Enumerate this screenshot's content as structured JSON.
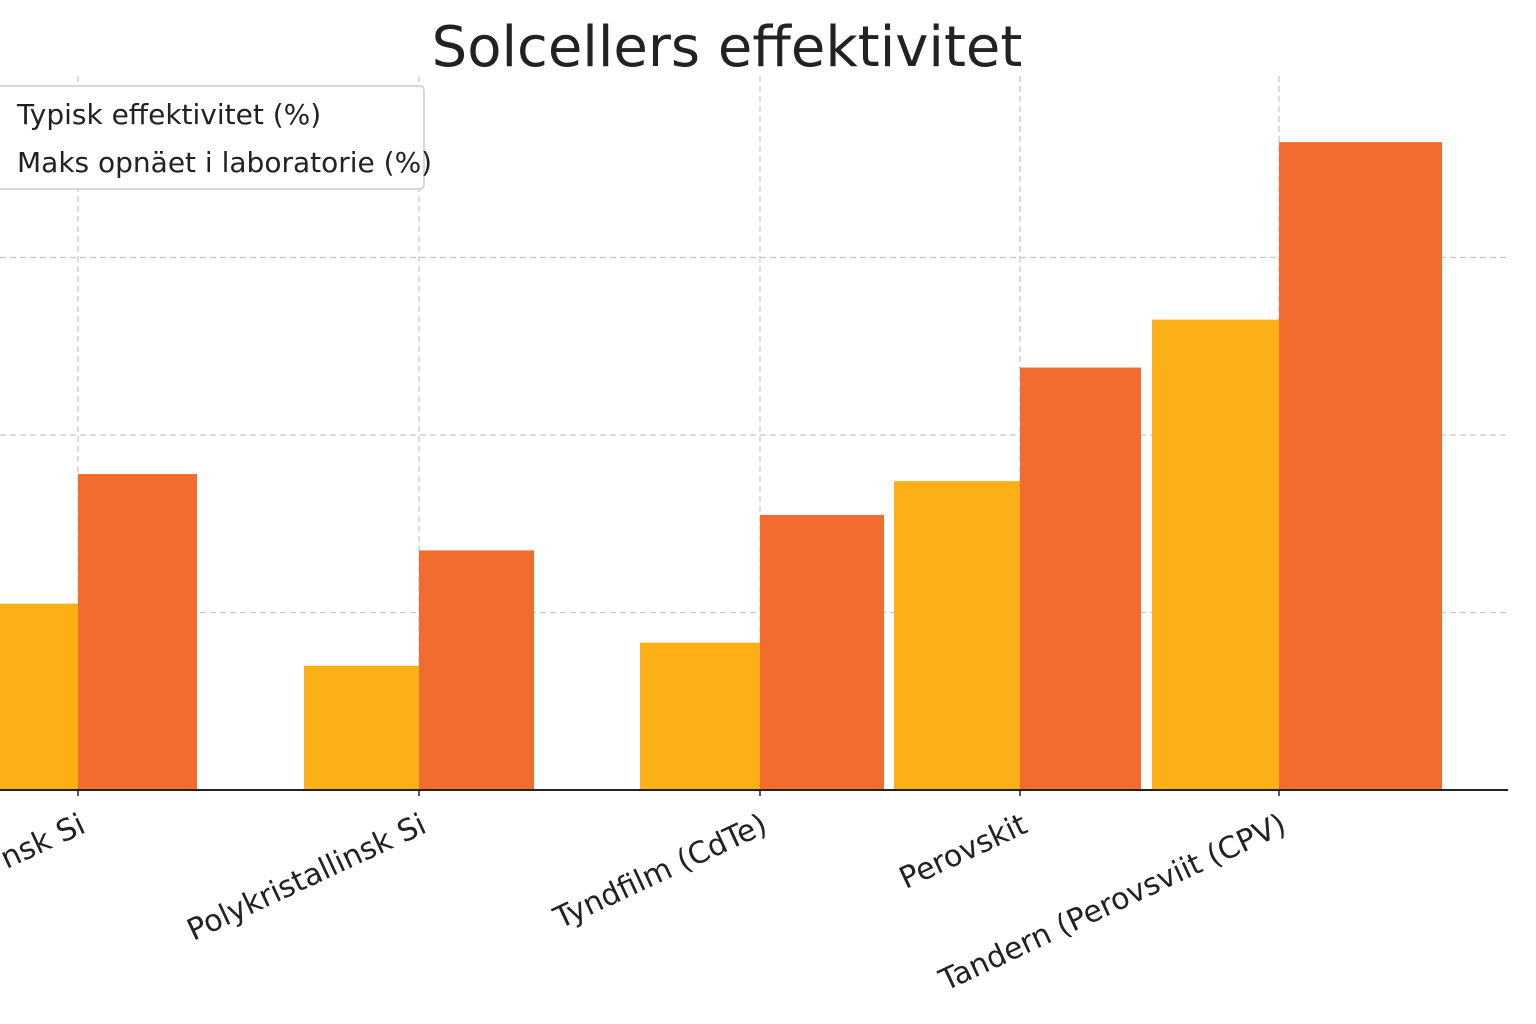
{
  "chart_data": {
    "type": "bar",
    "title": "Solcellers effektivitet",
    "xlabel": "",
    "ylabel": "",
    "ylim": [
      0,
      36
    ],
    "grid": true,
    "legend_position": "top-left",
    "categories": [
      "Monokrystallinsk Si",
      "Polykristallinsk Si",
      "Tyndfilm (CdTe)",
      "Perovskit",
      "Tandem (Perovsviit (CPV)"
    ],
    "visible_category_labels": [
      "nsk Si",
      "Polykristallinsk Si",
      "Tyndfilm (CdTe)",
      "Perovskit",
      "Tandern (Perovsviit (CPV)"
    ],
    "series": [
      {
        "name": "Typisk effektivitet (%)",
        "color": "#FDB015",
        "values": [
          10.5,
          7.0,
          8.3,
          17.4,
          26.5
        ]
      },
      {
        "name": "Maks opnäet i laboratorie (%)",
        "color": "#F26C30",
        "values": [
          17.8,
          13.5,
          15.5,
          23.8,
          36.5
        ]
      }
    ]
  }
}
